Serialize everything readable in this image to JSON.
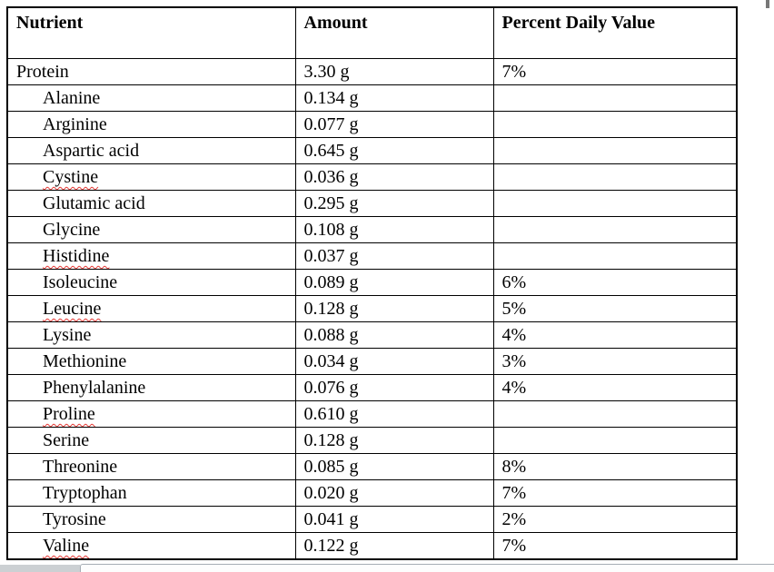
{
  "table": {
    "headers": [
      "Nutrient",
      "Amount",
      "Percent Daily Value"
    ],
    "rows": [
      {
        "nutrient": "Protein",
        "amount": "3.30 g",
        "percent_daily_value": "7%",
        "indented": false,
        "spellcheck_underline": false
      },
      {
        "nutrient": "Alanine",
        "amount": "0.134 g",
        "percent_daily_value": "",
        "indented": true,
        "spellcheck_underline": false
      },
      {
        "nutrient": "Arginine",
        "amount": "0.077 g",
        "percent_daily_value": "",
        "indented": true,
        "spellcheck_underline": false
      },
      {
        "nutrient": "Aspartic acid",
        "amount": "0.645 g",
        "percent_daily_value": "",
        "indented": true,
        "spellcheck_underline": false
      },
      {
        "nutrient": "Cystine",
        "amount": "0.036 g",
        "percent_daily_value": "",
        "indented": true,
        "spellcheck_underline": true
      },
      {
        "nutrient": "Glutamic acid",
        "amount": "0.295 g",
        "percent_daily_value": "",
        "indented": true,
        "spellcheck_underline": false
      },
      {
        "nutrient": "Glycine",
        "amount": "0.108 g",
        "percent_daily_value": "",
        "indented": true,
        "spellcheck_underline": false
      },
      {
        "nutrient": "Histidine",
        "amount": "0.037 g",
        "percent_daily_value": "",
        "indented": true,
        "spellcheck_underline": true
      },
      {
        "nutrient": "Isoleucine",
        "amount": "0.089 g",
        "percent_daily_value": "6%",
        "indented": true,
        "spellcheck_underline": false
      },
      {
        "nutrient": "Leucine",
        "amount": "0.128 g",
        "percent_daily_value": "5%",
        "indented": true,
        "spellcheck_underline": true
      },
      {
        "nutrient": "Lysine",
        "amount": "0.088 g",
        "percent_daily_value": "4%",
        "indented": true,
        "spellcheck_underline": false
      },
      {
        "nutrient": "Methionine",
        "amount": "0.034 g",
        "percent_daily_value": "3%",
        "indented": true,
        "spellcheck_underline": false
      },
      {
        "nutrient": "Phenylalanine",
        "amount": "0.076 g",
        "percent_daily_value": "4%",
        "indented": true,
        "spellcheck_underline": false
      },
      {
        "nutrient": "Proline",
        "amount": "0.610 g",
        "percent_daily_value": "",
        "indented": true,
        "spellcheck_underline": true
      },
      {
        "nutrient": "Serine",
        "amount": "0.128 g",
        "percent_daily_value": "",
        "indented": true,
        "spellcheck_underline": false
      },
      {
        "nutrient": "Threonine",
        "amount": "0.085 g",
        "percent_daily_value": "8%",
        "indented": true,
        "spellcheck_underline": false
      },
      {
        "nutrient": "Tryptophan",
        "amount": "0.020 g",
        "percent_daily_value": "7%",
        "indented": true,
        "spellcheck_underline": false
      },
      {
        "nutrient": "Tyrosine",
        "amount": "0.041 g",
        "percent_daily_value": "2%",
        "indented": true,
        "spellcheck_underline": false
      },
      {
        "nutrient": "Valine",
        "amount": "0.122 g",
        "percent_daily_value": "7%",
        "indented": true,
        "spellcheck_underline": true
      }
    ]
  },
  "colors": {
    "page_bg": "#ffffff",
    "text": "#000000",
    "table_border": "#000000",
    "squiggle": "#e53935",
    "scrollbar_gutter": "#ccd0d3",
    "scrollbar_track": "#fdfdfd",
    "scrollbar_track_border": "#a6adb4"
  }
}
